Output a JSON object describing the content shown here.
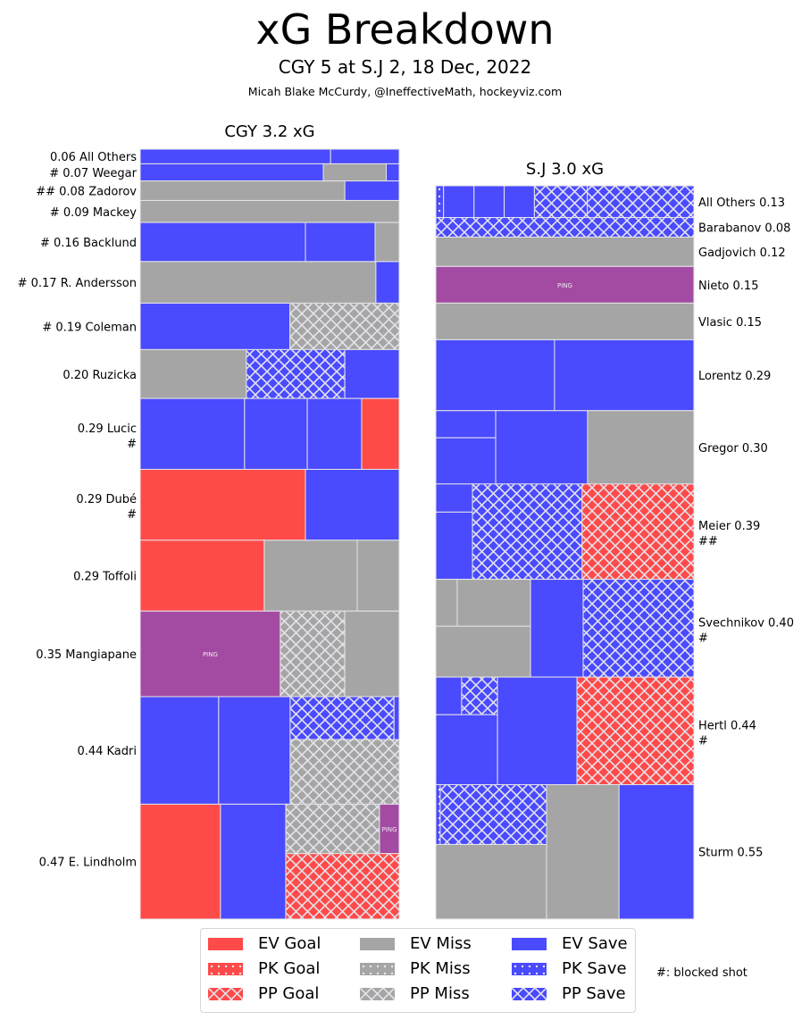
{
  "header": {
    "title": "xG Breakdown",
    "subtitle": "CGY 5 at S.J 2, 18 Dec, 2022",
    "credit": "Micah Blake McCurdy, @IneffectiveMath, hockeyviz.com"
  },
  "colors": {
    "goal": "#ff4a4a",
    "miss": "#a5a5a5",
    "save": "#4a4aff",
    "penalty": "#a34ba3",
    "tile_border": "#e6e6e6",
    "hatch": "#e0e0e0"
  },
  "legend": {
    "items": [
      {
        "label": "EV Goal",
        "result": "goal",
        "strength": "EV"
      },
      {
        "label": "PK Goal",
        "result": "goal",
        "strength": "PK"
      },
      {
        "label": "PP Goal",
        "result": "goal",
        "strength": "PP"
      },
      {
        "label": "EV Miss",
        "result": "miss",
        "strength": "EV"
      },
      {
        "label": "PK Miss",
        "result": "miss",
        "strength": "PK"
      },
      {
        "label": "PP Miss",
        "result": "miss",
        "strength": "PP"
      },
      {
        "label": "EV Save",
        "result": "save",
        "strength": "EV"
      },
      {
        "label": "PK Save",
        "result": "save",
        "strength": "PK"
      },
      {
        "label": "PP Save",
        "result": "save",
        "strength": "PP"
      }
    ],
    "note": "#: blocked shot"
  },
  "chart_data": [
    {
      "type": "treemap",
      "title": "CGY 3.2 xG",
      "team": "CGY",
      "total_xg": 3.2,
      "label_side": "left",
      "players": [
        {
          "label": "0.06 All Others",
          "xg": 0.06,
          "tiles": [
            {
              "r": "save",
              "s": "EV",
              "x0": 0,
              "x1": 0.735,
              "y0": 0,
              "y1": 1
            },
            {
              "r": "save",
              "s": "EV",
              "x0": 0.735,
              "x1": 1,
              "y0": 0,
              "y1": 1
            }
          ]
        },
        {
          "label": "# 0.07 Weegar",
          "xg": 0.07,
          "tiles": [
            {
              "r": "save",
              "s": "EV",
              "x0": 0,
              "x1": 0.707,
              "y0": 0,
              "y1": 1
            },
            {
              "r": "miss",
              "s": "EV",
              "x0": 0.707,
              "x1": 0.95,
              "y0": 0,
              "y1": 1
            },
            {
              "r": "save",
              "s": "EV",
              "x0": 0.95,
              "x1": 1,
              "y0": 0,
              "y1": 1
            }
          ]
        },
        {
          "label": "## 0.08 Zadorov",
          "xg": 0.08,
          "tiles": [
            {
              "r": "miss",
              "s": "EV",
              "x0": 0,
              "x1": 0.79,
              "y0": 0,
              "y1": 1
            },
            {
              "r": "save",
              "s": "EV",
              "x0": 0.79,
              "x1": 1,
              "y0": 0,
              "y1": 1
            }
          ]
        },
        {
          "label": "# 0.09 Mackey",
          "xg": 0.09,
          "tiles": [
            {
              "r": "miss",
              "s": "EV",
              "x0": 0,
              "x1": 1,
              "y0": 0,
              "y1": 1
            }
          ]
        },
        {
          "label": "# 0.16 Backlund",
          "xg": 0.16,
          "tiles": [
            {
              "r": "save",
              "s": "EV",
              "x0": 0,
              "x1": 0.638,
              "y0": 0,
              "y1": 1
            },
            {
              "r": "save",
              "s": "EV",
              "x0": 0.638,
              "x1": 0.907,
              "y0": 0,
              "y1": 1
            },
            {
              "r": "miss",
              "s": "EV",
              "x0": 0.907,
              "x1": 1,
              "y0": 0,
              "y1": 1
            }
          ]
        },
        {
          "label": "# 0.17 R. Andersson",
          "xg": 0.17,
          "tiles": [
            {
              "r": "miss",
              "s": "EV",
              "x0": 0,
              "x1": 0.91,
              "y0": 0,
              "y1": 1
            },
            {
              "r": "save",
              "s": "EV",
              "x0": 0.91,
              "x1": 1,
              "y0": 0,
              "y1": 1
            }
          ]
        },
        {
          "label": "# 0.19 Coleman",
          "xg": 0.19,
          "tiles": [
            {
              "r": "save",
              "s": "EV",
              "x0": 0,
              "x1": 0.578,
              "y0": 0,
              "y1": 1
            },
            {
              "r": "miss",
              "s": "PP",
              "x0": 0.578,
              "x1": 1,
              "y0": 0,
              "y1": 1
            }
          ]
        },
        {
          "label": "0.20 Ruzicka",
          "xg": 0.2,
          "tiles": [
            {
              "r": "miss",
              "s": "EV",
              "x0": 0,
              "x1": 0.41,
              "y0": 0,
              "y1": 1
            },
            {
              "r": "save",
              "s": "PP",
              "x0": 0.41,
              "x1": 0.79,
              "y0": 0,
              "y1": 1
            },
            {
              "r": "save",
              "s": "EV",
              "x0": 0.79,
              "x1": 1,
              "y0": 0,
              "y1": 1
            }
          ]
        },
        {
          "label": "0.29 Lucic",
          "extra": "#",
          "xg": 0.29,
          "tiles": [
            {
              "r": "save",
              "s": "EV",
              "x0": 0,
              "x1": 0.403,
              "y0": 0,
              "y1": 1
            },
            {
              "r": "save",
              "s": "EV",
              "x0": 0.403,
              "x1": 0.645,
              "y0": 0,
              "y1": 1
            },
            {
              "r": "save",
              "s": "EV",
              "x0": 0.645,
              "x1": 0.855,
              "y0": 0,
              "y1": 1
            },
            {
              "r": "goal",
              "s": "EV",
              "x0": 0.855,
              "x1": 1,
              "y0": 0,
              "y1": 1
            }
          ]
        },
        {
          "label": "0.29 Dubé",
          "extra": "#",
          "xg": 0.29,
          "tiles": [
            {
              "r": "goal",
              "s": "EV",
              "x0": 0,
              "x1": 0.638,
              "y0": 0,
              "y1": 1
            },
            {
              "r": "save",
              "s": "EV",
              "x0": 0.638,
              "x1": 1,
              "y0": 0,
              "y1": 1
            }
          ]
        },
        {
          "label": "0.29 Toffoli",
          "xg": 0.29,
          "tiles": [
            {
              "r": "goal",
              "s": "EV",
              "x0": 0,
              "x1": 0.479,
              "y0": 0,
              "y1": 1
            },
            {
              "r": "miss",
              "s": "EV",
              "x0": 0.479,
              "x1": 0.838,
              "y0": 0,
              "y1": 1
            },
            {
              "r": "miss",
              "s": "EV",
              "x0": 0.838,
              "x1": 1,
              "y0": 0,
              "y1": 1
            }
          ]
        },
        {
          "label": "0.35 Mangiapane",
          "xg": 0.35,
          "tiles": [
            {
              "r": "penalty",
              "s": "EV",
              "text": "PING",
              "x0": 0,
              "x1": 0.541,
              "y0": 0,
              "y1": 1
            },
            {
              "r": "miss",
              "s": "PP",
              "x0": 0.541,
              "x1": 0.79,
              "y0": 0,
              "y1": 1
            },
            {
              "r": "miss",
              "s": "EV",
              "x0": 0.79,
              "x1": 1,
              "y0": 0,
              "y1": 1
            }
          ]
        },
        {
          "label": "0.44 Kadri",
          "xg": 0.44,
          "tiles": [
            {
              "r": "save",
              "s": "EV",
              "x0": 0,
              "x1": 0.303,
              "y0": 0,
              "y1": 1
            },
            {
              "r": "save",
              "s": "EV",
              "x0": 0.303,
              "x1": 0.579,
              "y0": 0,
              "y1": 1
            },
            {
              "r": "save",
              "s": "PP",
              "x0": 0.579,
              "x1": 0.98,
              "y0": 0,
              "y1": 0.4
            },
            {
              "r": "save",
              "s": "EV",
              "x0": 0.98,
              "x1": 1,
              "y0": 0,
              "y1": 0.4
            },
            {
              "r": "miss",
              "s": "PP",
              "x0": 0.579,
              "x1": 1,
              "y0": 0.4,
              "y1": 1
            }
          ]
        },
        {
          "label": "0.47 E. Lindholm",
          "xg": 0.47,
          "tiles": [
            {
              "r": "goal",
              "s": "EV",
              "x0": 0,
              "x1": 0.31,
              "y0": 0,
              "y1": 1
            },
            {
              "r": "save",
              "s": "EV",
              "x0": 0.31,
              "x1": 0.562,
              "y0": 0,
              "y1": 1
            },
            {
              "r": "miss",
              "s": "PP",
              "x0": 0.562,
              "x1": 0.924,
              "y0": 0,
              "y1": 0.43
            },
            {
              "r": "penalty",
              "s": "EV",
              "text": "PING",
              "x0": 0.924,
              "x1": 1,
              "y0": 0,
              "y1": 0.43
            },
            {
              "r": "goal",
              "s": "PP",
              "x0": 0.562,
              "x1": 1,
              "y0": 0.43,
              "y1": 1
            }
          ]
        }
      ]
    },
    {
      "type": "treemap",
      "title": "S.J 3.0 xG",
      "team": "S.J",
      "total_xg": 3.0,
      "label_side": "right",
      "players": [
        {
          "label": "All Others 0.13",
          "xg": 0.13,
          "tiles": [
            {
              "r": "save",
              "s": "PK",
              "x0": 0,
              "x1": 0.03,
              "y0": 0,
              "y1": 1
            },
            {
              "r": "save",
              "s": "EV",
              "x0": 0.03,
              "x1": 0.148,
              "y0": 0,
              "y1": 1
            },
            {
              "r": "save",
              "s": "EV",
              "x0": 0.148,
              "x1": 0.265,
              "y0": 0,
              "y1": 1
            },
            {
              "r": "save",
              "s": "EV",
              "x0": 0.265,
              "x1": 0.382,
              "y0": 0,
              "y1": 1
            },
            {
              "r": "save",
              "s": "PP",
              "x0": 0.382,
              "x1": 0.587,
              "y0": 0,
              "y1": 1
            },
            {
              "r": "save",
              "s": "PP",
              "x0": 0.587,
              "x1": 1,
              "y0": 0,
              "y1": 1
            }
          ]
        },
        {
          "label": "Barabanov 0.08",
          "xg": 0.08,
          "tiles": [
            {
              "r": "save",
              "s": "PP",
              "x0": 0,
              "x1": 1,
              "y0": 0,
              "y1": 1
            }
          ]
        },
        {
          "label": "Gadjovich 0.12",
          "xg": 0.12,
          "tiles": [
            {
              "r": "miss",
              "s": "EV",
              "x0": 0,
              "x1": 1,
              "y0": 0,
              "y1": 1
            }
          ]
        },
        {
          "label": "Nieto 0.15",
          "xg": 0.15,
          "tiles": [
            {
              "r": "penalty",
              "s": "EV",
              "text": "PING",
              "x0": 0,
              "x1": 1,
              "y0": 0,
              "y1": 1
            }
          ]
        },
        {
          "label": "Vlasic 0.15",
          "xg": 0.15,
          "tiles": [
            {
              "r": "miss",
              "s": "EV",
              "x0": 0,
              "x1": 1,
              "y0": 0,
              "y1": 1
            }
          ]
        },
        {
          "label": "Lorentz 0.29",
          "xg": 0.29,
          "tiles": [
            {
              "r": "save",
              "s": "EV",
              "x0": 0,
              "x1": 0.46,
              "y0": 0,
              "y1": 1
            },
            {
              "r": "save",
              "s": "EV",
              "x0": 0.46,
              "x1": 1,
              "y0": 0,
              "y1": 1
            }
          ]
        },
        {
          "label": "Gregor 0.30",
          "xg": 0.3,
          "tiles": [
            {
              "r": "save",
              "s": "EV",
              "x0": 0,
              "x1": 0.232,
              "y0": 0,
              "y1": 0.37
            },
            {
              "r": "save",
              "s": "EV",
              "x0": 0,
              "x1": 0.232,
              "y0": 0.37,
              "y1": 1
            },
            {
              "r": "save",
              "s": "EV",
              "x0": 0.232,
              "x1": 0.588,
              "y0": 0,
              "y1": 1
            },
            {
              "r": "miss",
              "s": "EV",
              "x0": 0.588,
              "x1": 1,
              "y0": 0,
              "y1": 1
            }
          ]
        },
        {
          "label": "Meier 0.39",
          "extra": "##",
          "xg": 0.39,
          "tiles": [
            {
              "r": "save",
              "s": "EV",
              "x0": 0,
              "x1": 0.142,
              "y0": 0,
              "y1": 0.295
            },
            {
              "r": "save",
              "s": "EV",
              "x0": 0,
              "x1": 0.142,
              "y0": 0.295,
              "y1": 1
            },
            {
              "r": "save",
              "s": "PP",
              "x0": 0.142,
              "x1": 0.567,
              "y0": 0,
              "y1": 1
            },
            {
              "r": "goal",
              "s": "PP",
              "x0": 0.567,
              "x1": 1,
              "y0": 0,
              "y1": 1
            }
          ]
        },
        {
          "label": "Svechnikov 0.40",
          "extra": "#",
          "xg": 0.4,
          "tiles": [
            {
              "r": "miss",
              "s": "EV",
              "x0": 0,
              "x1": 0.083,
              "y0": 0,
              "y1": 0.48
            },
            {
              "r": "miss",
              "s": "EV",
              "x0": 0.083,
              "x1": 0.367,
              "y0": 0,
              "y1": 0.48
            },
            {
              "r": "miss",
              "s": "EV",
              "x0": 0,
              "x1": 0.367,
              "y0": 0.48,
              "y1": 1
            },
            {
              "r": "save",
              "s": "EV",
              "x0": 0.367,
              "x1": 0.571,
              "y0": 0,
              "y1": 1
            },
            {
              "r": "save",
              "s": "PP",
              "x0": 0.571,
              "x1": 1,
              "y0": 0,
              "y1": 1
            }
          ]
        },
        {
          "label": "Hertl 0.44",
          "extra": "#",
          "xg": 0.44,
          "tiles": [
            {
              "r": "save",
              "s": "EV",
              "x0": 0,
              "x1": 0.1,
              "y0": 0,
              "y1": 0.35
            },
            {
              "r": "save",
              "s": "PP",
              "x0": 0.1,
              "x1": 0.239,
              "y0": 0,
              "y1": 0.35
            },
            {
              "r": "save",
              "s": "EV",
              "x0": 0,
              "x1": 0.239,
              "y0": 0.35,
              "y1": 1
            },
            {
              "r": "save",
              "s": "EV",
              "x0": 0.239,
              "x1": 0.547,
              "y0": 0,
              "y1": 1
            },
            {
              "r": "goal",
              "s": "PP",
              "x0": 0.547,
              "x1": 1,
              "y0": 0,
              "y1": 1
            }
          ]
        },
        {
          "label": "Sturm 0.55",
          "xg": 0.55,
          "tiles": [
            {
              "r": "save",
              "s": "PK",
              "x0": 0,
              "x1": 0.017,
              "y0": 0,
              "y1": 0.445
            },
            {
              "r": "save",
              "s": "PP",
              "x0": 0.017,
              "x1": 0.429,
              "y0": 0,
              "y1": 0.445
            },
            {
              "r": "miss",
              "s": "EV",
              "x0": 0,
              "x1": 0.429,
              "y0": 0.445,
              "y1": 1
            },
            {
              "r": "miss",
              "s": "EV",
              "x0": 0.429,
              "x1": 0.71,
              "y0": 0,
              "y1": 1
            },
            {
              "r": "save",
              "s": "EV",
              "x0": 0.71,
              "x1": 1,
              "y0": 0,
              "y1": 1
            }
          ]
        }
      ]
    }
  ]
}
